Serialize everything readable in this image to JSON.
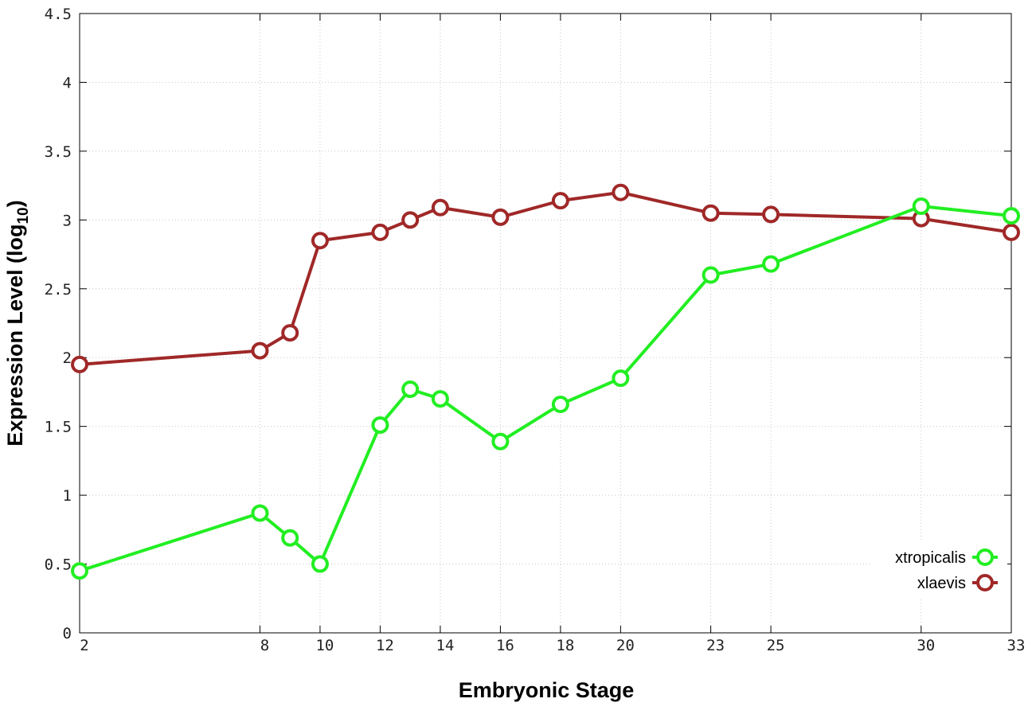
{
  "chart_data": {
    "type": "line",
    "title": "",
    "xlabel": "Embryonic Stage",
    "ylabel": "Expression Level (log10)",
    "ylabel_main": "Expression Level (log",
    "ylabel_sub": "10",
    "ylabel_tail": ")",
    "xlim": [
      2,
      33
    ],
    "ylim": [
      0,
      4.5
    ],
    "x_ticks": [
      2,
      8,
      10,
      12,
      14,
      16,
      18,
      20,
      23,
      25,
      30,
      33
    ],
    "y_ticks": [
      0,
      0.5,
      1,
      1.5,
      2,
      2.5,
      3,
      3.5,
      4,
      4.5
    ],
    "x_tick_labels": [
      "2",
      "8",
      "10",
      "12",
      "14",
      "16",
      "18",
      "20",
      "23",
      "25",
      "30",
      "33"
    ],
    "y_tick_labels": [
      "0",
      "0.5",
      "1",
      "1.5",
      "2",
      "2.5",
      "3",
      "3.5",
      "4",
      "4.5"
    ],
    "grid": true,
    "legend_position": "bottom-right",
    "x": [
      2,
      8,
      9,
      10,
      12,
      13,
      14,
      16,
      18,
      20,
      23,
      25,
      30,
      33
    ],
    "series": [
      {
        "name": "xtropicalis",
        "color": "#22ee22",
        "values": [
          0.45,
          0.87,
          0.69,
          0.5,
          1.51,
          1.77,
          1.7,
          1.39,
          1.66,
          1.85,
          2.6,
          2.68,
          3.1,
          3.03
        ]
      },
      {
        "name": "xlaevis",
        "color": "#a02828",
        "values": [
          1.95,
          2.05,
          2.18,
          2.85,
          2.91,
          3.0,
          3.09,
          3.02,
          3.14,
          3.2,
          3.05,
          3.04,
          3.01,
          2.91
        ]
      }
    ]
  }
}
